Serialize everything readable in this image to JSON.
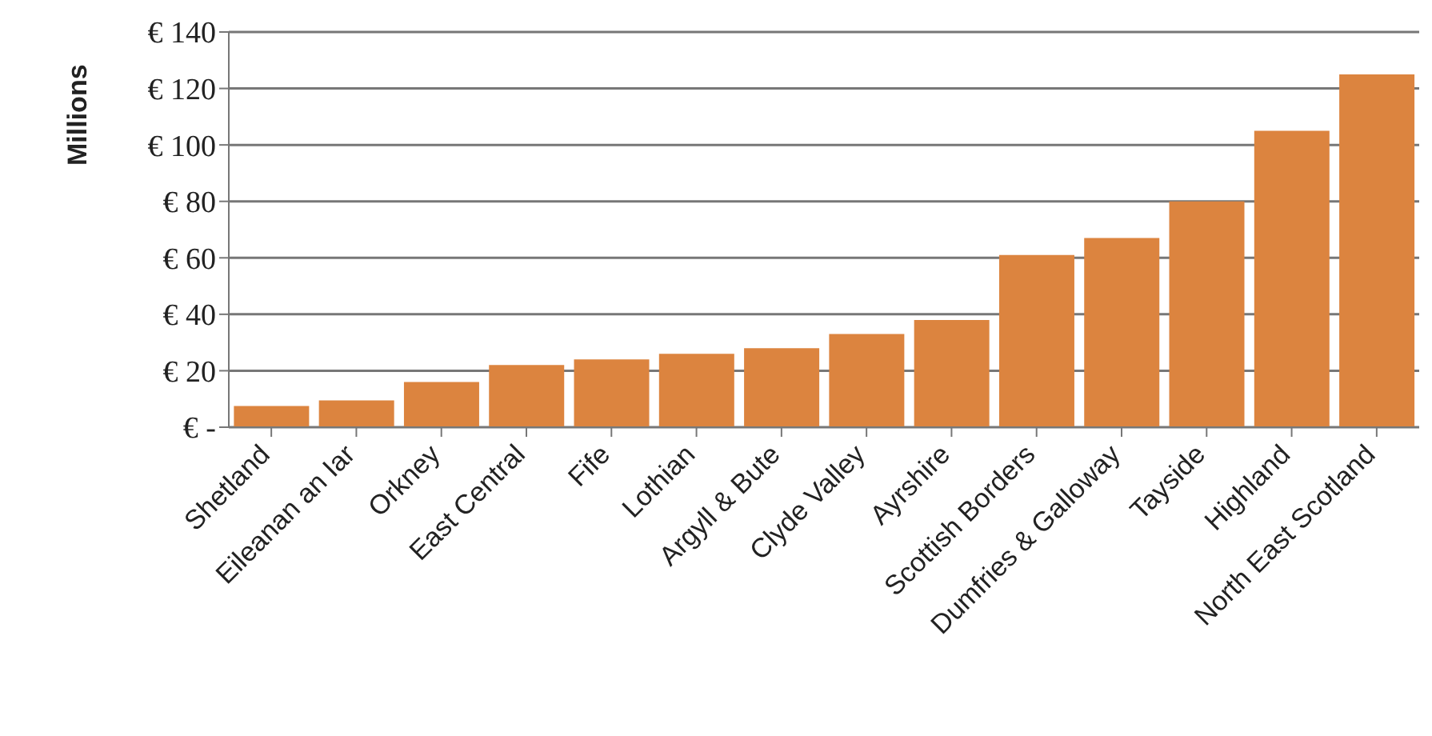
{
  "chart_data": {
    "type": "bar",
    "ylabel": "Millions",
    "categories": [
      "Shetland",
      "Eileanan an Iar",
      "Orkney",
      "East Central",
      "Fife",
      "Lothian",
      "Argyll & Bute",
      "Clyde Valley",
      "Ayrshire",
      "Scottish Borders",
      "Dumfries & Galloway",
      "Tayside",
      "Highland",
      "North East Scotland"
    ],
    "values": [
      7.5,
      9.5,
      16,
      22,
      24,
      26,
      28,
      33,
      38,
      61,
      67,
      80,
      105,
      125
    ],
    "color": "#dc843f",
    "ylim": [
      0,
      140
    ],
    "yticks": [
      {
        "value": 0,
        "label": "€ -"
      },
      {
        "value": 20,
        "label": "€ 20"
      },
      {
        "value": 40,
        "label": "€ 40"
      },
      {
        "value": 60,
        "label": "€ 60"
      },
      {
        "value": 80,
        "label": "€ 80"
      },
      {
        "value": 100,
        "label": "€ 100"
      },
      {
        "value": 120,
        "label": "€ 120"
      },
      {
        "value": 140,
        "label": "€ 140"
      }
    ],
    "grid": "y"
  }
}
